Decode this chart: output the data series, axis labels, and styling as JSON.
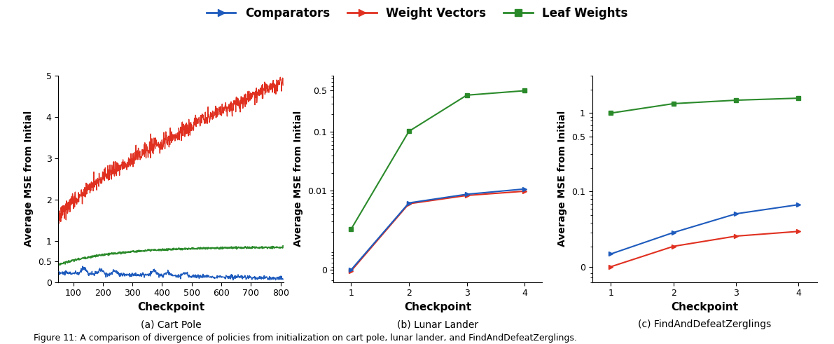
{
  "title": "Figure 11: A comparison of divergence of policies from initialization on cart pole, lunar lander, and FindAndDefeatZerglings.",
  "legend_labels": [
    "Comparators",
    "Weight Vectors",
    "Leaf Weights"
  ],
  "legend_colors": [
    "#1e5bbd",
    "#e03020",
    "#2a8a2a"
  ],
  "subplot_titles": [
    "(a) Cart Pole",
    "(b) Lunar Lander",
    "(c) FindAndDefeatZerglings"
  ],
  "ylabel": "Average MSE from Initial",
  "xlabel": "Checkpoint",
  "cartpole": {
    "xlim": [
      50,
      810
    ],
    "ylim": [
      0,
      5
    ],
    "xticks": [
      100,
      200,
      300,
      400,
      500,
      600,
      700,
      800
    ],
    "yticks": [
      0,
      0.5,
      1,
      2,
      3,
      4,
      5
    ],
    "blue_start": 0.22,
    "blue_end": 0.09,
    "green_start": 0.43,
    "green_end": 0.85,
    "red_start": 1.55,
    "red_end": 4.85
  },
  "lunar": {
    "checkpoints": [
      1,
      2,
      3,
      4
    ],
    "blue_y": [
      0.00045,
      0.0062,
      0.0087,
      0.0107
    ],
    "red_y": [
      0.00043,
      0.006,
      0.0083,
      0.0098
    ],
    "green_y": [
      0.0022,
      0.102,
      0.42,
      0.5
    ],
    "xlim": [
      0.7,
      4.3
    ],
    "ylim_log": [
      0.00028,
      0.9
    ],
    "ytick_vals": [
      0.00045,
      0.01,
      0.1,
      0.5
    ],
    "ytick_labels": [
      "0",
      "0.01",
      "0.1",
      "0.5"
    ],
    "xticks": [
      1,
      2,
      3,
      4
    ]
  },
  "zerg": {
    "checkpoints": [
      1,
      2,
      3,
      4
    ],
    "blue_y": [
      0.016,
      0.03,
      0.052,
      0.068
    ],
    "red_y": [
      0.011,
      0.02,
      0.027,
      0.031
    ],
    "green_y": [
      1.0,
      1.32,
      1.46,
      1.55
    ],
    "xlim": [
      0.7,
      4.3
    ],
    "ylim_log": [
      0.007,
      3.0
    ],
    "ytick_vals": [
      0.011,
      0.1,
      0.5,
      1.0
    ],
    "ytick_labels": [
      "0",
      "0.1",
      "0.5",
      "1"
    ],
    "xticks": [
      1,
      2,
      3,
      4
    ]
  }
}
